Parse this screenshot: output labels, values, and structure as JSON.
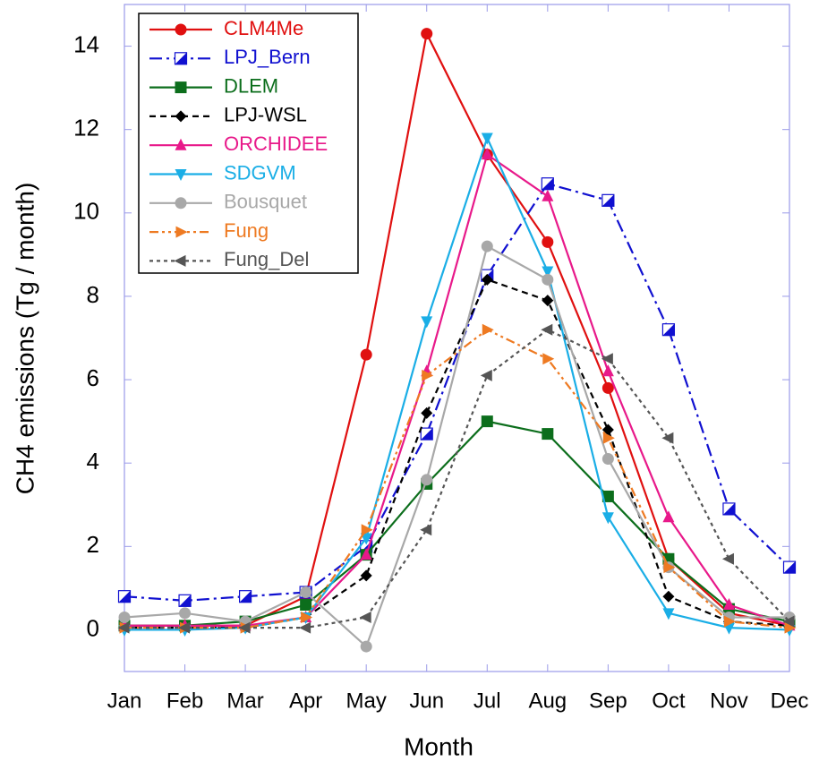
{
  "chart_data": {
    "type": "line",
    "x_label": "Month",
    "y_label": "CH4 emissions (Tg / month)",
    "categories": [
      "Jan",
      "Feb",
      "Mar",
      "Apr",
      "May",
      "Jun",
      "Jul",
      "Aug",
      "Sep",
      "Oct",
      "Nov",
      "Dec"
    ],
    "ylim": [
      -1,
      15
    ],
    "yticks": [
      0,
      2,
      4,
      6,
      8,
      10,
      12,
      14
    ],
    "grid": false,
    "legend": "upper left",
    "series": [
      {
        "name": "CLM4Me",
        "color": "#e01010",
        "marker": "circle",
        "dash": "solid",
        "values": [
          0.1,
          0.1,
          0.1,
          0.8,
          6.6,
          14.3,
          11.4,
          9.3,
          5.8,
          1.7,
          0.4,
          0.1
        ]
      },
      {
        "name": "LPJ_Bern",
        "color": "#1010d0",
        "marker": "half-square",
        "dash": "dashdot",
        "values": [
          0.8,
          0.7,
          0.8,
          0.9,
          2.0,
          4.7,
          8.5,
          10.7,
          10.3,
          7.2,
          2.9,
          1.5
        ]
      },
      {
        "name": "DLEM",
        "color": "#0c6e1c",
        "marker": "square",
        "dash": "solid",
        "values": [
          0.1,
          0.1,
          0.2,
          0.6,
          1.8,
          3.5,
          5.0,
          4.7,
          3.2,
          1.7,
          0.5,
          0.2
        ]
      },
      {
        "name": "LPJ-WSL",
        "color": "#000000",
        "marker": "diamond",
        "dash": "dashed",
        "values": [
          0.05,
          0.05,
          0.05,
          0.3,
          1.3,
          5.2,
          8.4,
          7.9,
          4.8,
          0.8,
          0.2,
          0.1
        ]
      },
      {
        "name": "ORCHIDEE",
        "color": "#e8198a",
        "marker": "triangle-up",
        "dash": "solid",
        "values": [
          0.1,
          0.1,
          0.1,
          0.3,
          1.8,
          6.2,
          11.4,
          10.4,
          6.2,
          2.7,
          0.6,
          0.1
        ]
      },
      {
        "name": "SDGVM",
        "color": "#1aaee6",
        "marker": "triangle-down",
        "dash": "solid",
        "values": [
          0.0,
          0.0,
          0.05,
          0.3,
          2.2,
          7.4,
          11.8,
          8.6,
          2.7,
          0.4,
          0.05,
          0.0
        ]
      },
      {
        "name": "Bousquet",
        "color": "#a8a8a8",
        "marker": "circle",
        "dash": "solid",
        "values": [
          0.3,
          0.4,
          0.2,
          0.9,
          -0.4,
          3.6,
          9.2,
          8.4,
          4.1,
          1.5,
          0.3,
          0.3
        ]
      },
      {
        "name": "Fung",
        "color": "#ee7a22",
        "marker": "triangle-right",
        "dash": "dashdotdot",
        "values": [
          0.05,
          0.05,
          0.05,
          0.3,
          2.4,
          6.1,
          7.2,
          6.5,
          4.6,
          1.5,
          0.2,
          0.05
        ]
      },
      {
        "name": "Fung_Del",
        "color": "#555555",
        "marker": "triangle-left",
        "dash": "dotted",
        "values": [
          0.05,
          0.05,
          0.05,
          0.05,
          0.3,
          2.4,
          6.1,
          7.2,
          6.5,
          4.6,
          1.7,
          0.2
        ]
      }
    ]
  }
}
